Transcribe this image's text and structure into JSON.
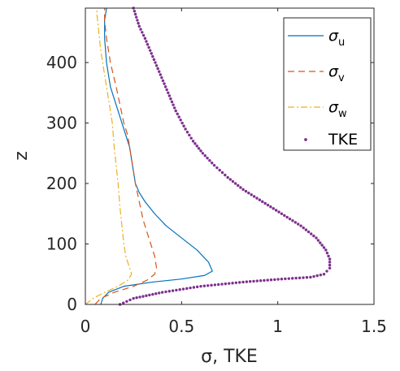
{
  "chart_data": {
    "type": "line",
    "xlabel": "σ, TKE",
    "ylabel": "z",
    "xlim": [
      0,
      1.5
    ],
    "ylim": [
      0,
      490
    ],
    "x_ticks": [
      "0",
      "0.5",
      "1",
      "1.5"
    ],
    "y_ticks": [
      "0",
      "100",
      "200",
      "300",
      "400"
    ],
    "x_tick_values": [
      0,
      0.5,
      1,
      1.5
    ],
    "y_tick_values": [
      0,
      100,
      200,
      300,
      400
    ],
    "legend_position": "top-right",
    "series": [
      {
        "name_base": "σ",
        "name_sub": "u",
        "style": "solid",
        "color": "#0072BD",
        "x": [
          0.08,
          0.09,
          0.12,
          0.2,
          0.35,
          0.5,
          0.62,
          0.66,
          0.64,
          0.58,
          0.5,
          0.42,
          0.36,
          0.31,
          0.28,
          0.26,
          0.25,
          0.24,
          0.23,
          0.21,
          0.19,
          0.16,
          0.13,
          0.11,
          0.1,
          0.1,
          0.11
        ],
        "y": [
          0,
          10,
          20,
          30,
          37,
          42,
          48,
          55,
          70,
          90,
          110,
          130,
          150,
          170,
          185,
          200,
          220,
          240,
          260,
          280,
          300,
          330,
          360,
          400,
          440,
          470,
          490
        ]
      },
      {
        "name_base": "σ",
        "name_sub": "v",
        "style": "dashed",
        "color": "#D95319",
        "x": [
          0.05,
          0.08,
          0.15,
          0.25,
          0.32,
          0.36,
          0.37,
          0.36,
          0.33,
          0.3,
          0.28,
          0.26,
          0.25,
          0.24,
          0.23,
          0.22,
          0.2,
          0.18,
          0.16,
          0.13,
          0.11,
          0.1,
          0.1
        ],
        "y": [
          0,
          10,
          20,
          30,
          40,
          50,
          60,
          80,
          110,
          140,
          170,
          200,
          220,
          240,
          260,
          280,
          300,
          330,
          360,
          400,
          440,
          470,
          490
        ]
      },
      {
        "name_base": "σ",
        "name_sub": "w",
        "style": "dashdot",
        "color": "#EDB120",
        "x": [
          0.0,
          0.04,
          0.1,
          0.17,
          0.22,
          0.24,
          0.23,
          0.21,
          0.2,
          0.19,
          0.18,
          0.17,
          0.16,
          0.15,
          0.14,
          0.12,
          0.1,
          0.08,
          0.07,
          0.06,
          0.06
        ],
        "y": [
          0,
          10,
          20,
          30,
          40,
          50,
          60,
          80,
          100,
          130,
          160,
          200,
          230,
          260,
          300,
          340,
          380,
          420,
          450,
          480,
          490
        ]
      },
      {
        "name": "TKE",
        "style": "dotted-markers",
        "color": "#7E2F8E",
        "x": [
          0.18,
          0.25,
          0.4,
          0.6,
          0.82,
          1.02,
          1.17,
          1.24,
          1.27,
          1.27,
          1.25,
          1.2,
          1.12,
          1.02,
          0.92,
          0.82,
          0.74,
          0.67,
          0.61,
          0.56,
          0.52,
          0.47,
          0.43,
          0.39,
          0.35,
          0.31,
          0.28,
          0.26,
          0.25
        ],
        "y": [
          0,
          10,
          20,
          30,
          37,
          42,
          45,
          50,
          60,
          75,
          90,
          110,
          130,
          150,
          170,
          190,
          210,
          230,
          250,
          270,
          290,
          320,
          350,
          380,
          410,
          440,
          460,
          480,
          490
        ]
      }
    ]
  }
}
